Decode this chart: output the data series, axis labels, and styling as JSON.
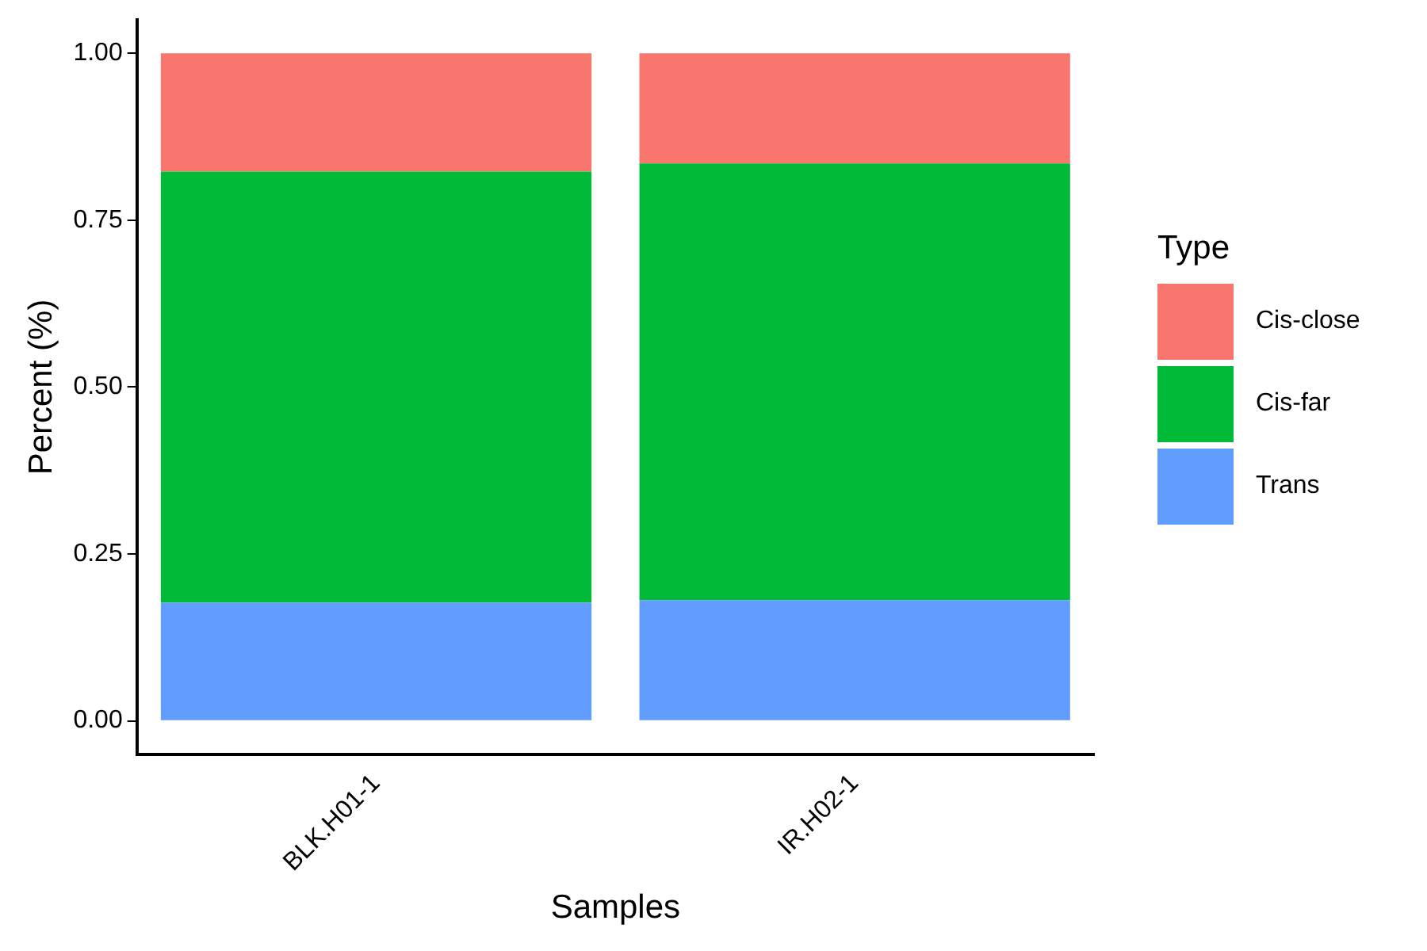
{
  "chart_data": {
    "type": "bar",
    "stacked": true,
    "xlabel": "Samples",
    "ylabel": "Percent (%)",
    "legend_title": "Type",
    "legend": "right",
    "grid": false,
    "categories": [
      "BLK.H01-1",
      "IR.H02-1"
    ],
    "series": [
      {
        "name": "Trans",
        "color": "#619cff",
        "values": [
          0.177,
          0.181
        ]
      },
      {
        "name": "Cis-far",
        "color": "#00ba38",
        "values": [
          0.646,
          0.654
        ]
      },
      {
        "name": "Cis-close",
        "color": "#f8766d",
        "values": [
          0.177,
          0.165
        ]
      }
    ],
    "ylim": [
      -0.05,
      1.05
    ],
    "yticks": [
      {
        "value": 0,
        "label": "0.00"
      },
      {
        "value": 0.25,
        "label": "0.25"
      },
      {
        "value": 0.5,
        "label": "0.50"
      },
      {
        "value": 0.75,
        "label": "0.75"
      },
      {
        "value": 1,
        "label": "1.00"
      }
    ]
  }
}
